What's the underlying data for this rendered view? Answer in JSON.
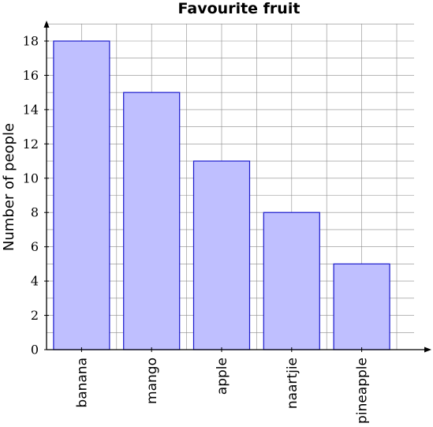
{
  "chart_data": {
    "type": "bar",
    "title": "Favourite fruit",
    "xlabel": "",
    "ylabel": "Number of people",
    "categories": [
      "banana",
      "mango",
      "apple",
      "naartjie",
      "pineapple"
    ],
    "values": [
      18,
      15,
      11,
      8,
      5
    ],
    "ylim": [
      0,
      18
    ],
    "yticks": [
      0,
      2,
      4,
      6,
      8,
      10,
      12,
      14,
      16,
      18
    ],
    "grid": true,
    "bar_fill": "#bfbfff",
    "bar_stroke": "#1a1acc",
    "grid_color": "#8c8c8c"
  }
}
